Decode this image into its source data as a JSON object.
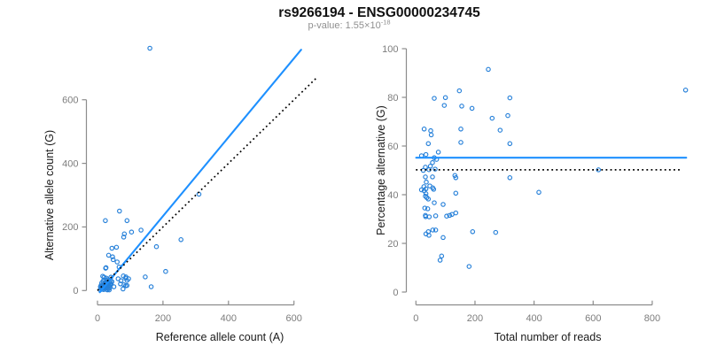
{
  "title": "rs9266194 - ENSG00000234745",
  "subtitle": {
    "label": "p-value: 1.55×10",
    "exponent": "-18"
  },
  "colors": {
    "line_blue": "#1E90FF",
    "point_blue": "#2680D9",
    "dotted_black": "#000000",
    "axis_gray": "#8c8c8c",
    "tick_label_gray": "#7d7d7d",
    "title_black": "#111111",
    "subtitle_gray": "#909090"
  },
  "chart_data": [
    {
      "name": "allele-counts-scatter",
      "type": "scatter",
      "title": "",
      "xlabel": "Reference allele count (A)",
      "ylabel": "Alternative allele count (G)",
      "xticks": [
        0,
        200,
        400,
        600
      ],
      "yticks": [
        0,
        200,
        400,
        600
      ],
      "xlim": [
        -10,
        680
      ],
      "ylim": [
        -15,
        790
      ],
      "grid": false,
      "points": [
        [
          160,
          762
        ],
        [
          24,
          220
        ],
        [
          67,
          250
        ],
        [
          90,
          220
        ],
        [
          82,
          178
        ],
        [
          104,
          184
        ],
        [
          133,
          190
        ],
        [
          80,
          168
        ],
        [
          255,
          160
        ],
        [
          180,
          138
        ],
        [
          44,
          133
        ],
        [
          58,
          136
        ],
        [
          34,
          111
        ],
        [
          46,
          106
        ],
        [
          48,
          97
        ],
        [
          60,
          90
        ],
        [
          66,
          74
        ],
        [
          25,
          70
        ],
        [
          26,
          72
        ],
        [
          310,
          303
        ],
        [
          87,
          43
        ],
        [
          208,
          60
        ],
        [
          146,
          43
        ],
        [
          95,
          37
        ],
        [
          20,
          42
        ],
        [
          16,
          45
        ],
        [
          27,
          39
        ],
        [
          41,
          42
        ],
        [
          63,
          37
        ],
        [
          79,
          46
        ],
        [
          86,
          39
        ],
        [
          90,
          32
        ],
        [
          70,
          21
        ],
        [
          81,
          18
        ],
        [
          90,
          16
        ],
        [
          50,
          12
        ],
        [
          78,
          5
        ],
        [
          164,
          12
        ],
        [
          86,
          15
        ],
        [
          72,
          31
        ],
        [
          8,
          2
        ],
        [
          10,
          6
        ],
        [
          12,
          10
        ],
        [
          14,
          4
        ],
        [
          15,
          14
        ],
        [
          16,
          8
        ],
        [
          18,
          18
        ],
        [
          19,
          3
        ],
        [
          20,
          12
        ],
        [
          21,
          22
        ],
        [
          22,
          7
        ],
        [
          23,
          16
        ],
        [
          24,
          26
        ],
        [
          25,
          10
        ],
        [
          26,
          20
        ],
        [
          27,
          4
        ],
        [
          28,
          14
        ],
        [
          29,
          24
        ],
        [
          30,
          8
        ],
        [
          31,
          18
        ],
        [
          32,
          28
        ],
        [
          33,
          12
        ],
        [
          34,
          22
        ],
        [
          35,
          6
        ],
        [
          36,
          16
        ],
        [
          37,
          26
        ],
        [
          38,
          10
        ],
        [
          39,
          20
        ],
        [
          40,
          30
        ],
        [
          13,
          24
        ],
        [
          17,
          30
        ],
        [
          22,
          32
        ],
        [
          28,
          34
        ],
        [
          33,
          34
        ],
        [
          11,
          17
        ],
        [
          9,
          12
        ],
        [
          30,
          2
        ],
        [
          36,
          2
        ],
        [
          42,
          20
        ],
        [
          44,
          28
        ]
      ],
      "lines": [
        {
          "name": "fit-line",
          "style": "solid",
          "color_key": "line_blue",
          "slope": 1.24,
          "intercept": -14,
          "x_range": [
            7,
            622
          ]
        },
        {
          "name": "identity-line",
          "style": "dotted",
          "color_key": "dotted_black",
          "slope": 1,
          "intercept": 0,
          "x_range": [
            0,
            672
          ]
        }
      ]
    },
    {
      "name": "percentage-scatter",
      "type": "scatter",
      "title": "",
      "xlabel": "Total number of reads",
      "ylabel": "Percentage alternative (G)",
      "xticks": [
        0,
        200,
        400,
        600,
        800
      ],
      "yticks": [
        0,
        20,
        40,
        60,
        80,
        100
      ],
      "xlim": [
        -20,
        960
      ],
      "ylim": [
        0,
        103
      ],
      "grid": false,
      "points": [
        [
          245,
          91.5
        ],
        [
          147,
          82.7
        ],
        [
          913,
          83
        ],
        [
          62,
          79.6
        ],
        [
          100,
          79.9
        ],
        [
          318,
          79.8
        ],
        [
          96,
          76.7
        ],
        [
          155,
          76.4
        ],
        [
          190,
          75.5
        ],
        [
          258,
          71.4
        ],
        [
          311,
          72.5
        ],
        [
          28,
          67
        ],
        [
          50,
          66.3
        ],
        [
          52,
          64.6
        ],
        [
          152,
          67
        ],
        [
          285,
          66.5
        ],
        [
          42,
          61
        ],
        [
          152,
          61.5
        ],
        [
          318,
          61
        ],
        [
          76,
          57.5
        ],
        [
          19,
          56
        ],
        [
          34,
          56.5
        ],
        [
          62,
          55.2
        ],
        [
          70,
          54.5
        ],
        [
          56,
          53.2
        ],
        [
          32,
          51.3
        ],
        [
          49,
          51.7
        ],
        [
          65,
          50.5
        ],
        [
          25,
          50
        ],
        [
          44,
          50.3
        ],
        [
          618,
          50.2
        ],
        [
          32,
          47.3
        ],
        [
          56,
          47.3
        ],
        [
          132,
          47.9
        ],
        [
          135,
          47
        ],
        [
          318,
          47
        ],
        [
          35,
          45.2
        ],
        [
          47,
          43.6
        ],
        [
          57,
          42.8
        ],
        [
          19,
          42
        ],
        [
          27,
          43.3
        ],
        [
          28,
          41.6
        ],
        [
          34,
          42.4
        ],
        [
          34,
          40.4
        ],
        [
          60,
          42.2
        ],
        [
          135,
          40.6
        ],
        [
          416,
          41
        ],
        [
          32,
          39.4
        ],
        [
          37,
          38.8
        ],
        [
          42,
          38.2
        ],
        [
          62,
          36.7
        ],
        [
          92,
          36
        ],
        [
          30,
          34.5
        ],
        [
          40,
          34.2
        ],
        [
          32,
          31.5
        ],
        [
          33,
          31
        ],
        [
          45,
          30.9
        ],
        [
          67,
          31.3
        ],
        [
          104,
          31.2
        ],
        [
          114,
          31.5
        ],
        [
          122,
          31.9
        ],
        [
          135,
          32.5
        ],
        [
          42,
          24.8
        ],
        [
          34,
          23.9
        ],
        [
          44,
          23.3
        ],
        [
          57,
          25.5
        ],
        [
          67,
          25.5
        ],
        [
          92,
          22.4
        ],
        [
          192,
          24.8
        ],
        [
          270,
          24.5
        ],
        [
          87,
          14.8
        ],
        [
          82,
          13.1
        ],
        [
          180,
          10.5
        ]
      ],
      "lines": [
        {
          "name": "mean-line",
          "style": "solid",
          "color_key": "line_blue",
          "slope": 0,
          "intercept": 55.2,
          "x_range": [
            1,
            915
          ]
        },
        {
          "name": "null-line",
          "style": "dotted",
          "color_key": "dotted_black",
          "slope": 0,
          "intercept": 50.2,
          "x_range": [
            0,
            897
          ]
        }
      ]
    }
  ]
}
